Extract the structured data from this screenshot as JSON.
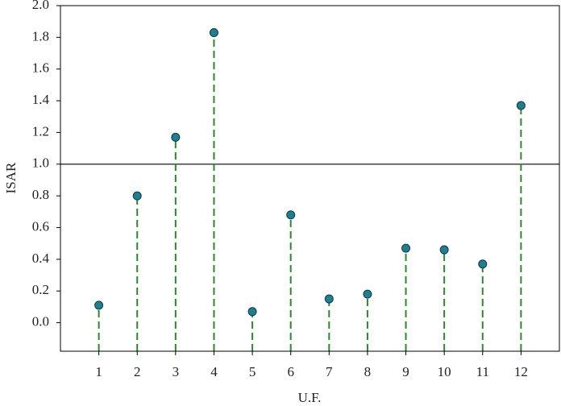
{
  "chart_data": {
    "type": "stem",
    "x_label": "U.F.",
    "y_label": "ISAR",
    "x": [
      1,
      2,
      3,
      4,
      5,
      6,
      7,
      8,
      9,
      10,
      11,
      12
    ],
    "values": [
      0.11,
      0.8,
      1.17,
      1.83,
      0.07,
      0.68,
      0.15,
      0.18,
      0.47,
      0.46,
      0.37,
      1.37
    ],
    "color": "#1f7f8f",
    "stem_color": "#2a8a2a",
    "hline": 1.0,
    "xlim": [
      0,
      13
    ],
    "xticks": [
      1,
      2,
      3,
      4,
      5,
      6,
      7,
      8,
      9,
      10,
      11,
      12
    ],
    "ylim": [
      -0.18,
      2.0
    ],
    "yticks": [
      {
        "value": 0,
        "label": "0.0"
      },
      0.2,
      0.4,
      0.6,
      0.8,
      {
        "value": 1,
        "label": "1.0"
      },
      1.2,
      1.4,
      1.6,
      1.8,
      {
        "value": 2,
        "label": "2.0"
      }
    ]
  }
}
